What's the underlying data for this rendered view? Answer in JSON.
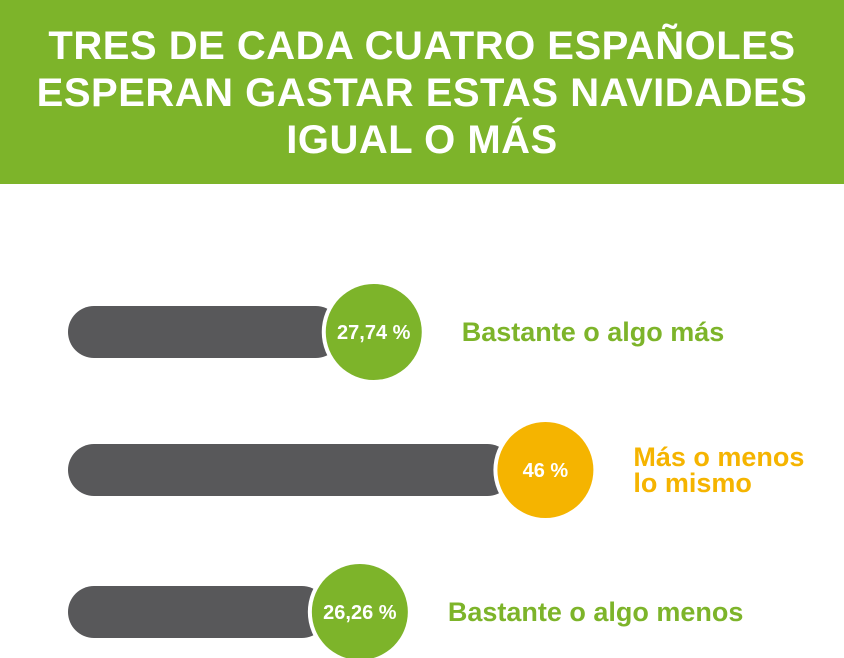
{
  "header": {
    "line1": "TRES DE CADA CUATRO ESPAÑOLES",
    "line2": "ESPERAN GASTAR ESTAS NAVIDADES",
    "line3": "IGUAL O MÁS"
  },
  "colors": {
    "banner": "#7db42a",
    "bar": "#58585a",
    "green": "#7db42a",
    "orange": "#f5b400",
    "white": "#ffffff"
  },
  "chart_data": {
    "type": "bar",
    "orientation": "horizontal",
    "title": "TRES DE CADA CUATRO ESPAÑOLES ESPERAN GASTAR ESTAS NAVIDADES IGUAL O MÁS",
    "unit": "%",
    "categories": [
      "Bastante o algo más",
      "Más o menos lo mismo",
      "Bastante o algo menos"
    ],
    "values": [
      27.74,
      46,
      26.26
    ],
    "value_labels": [
      "27,74 %",
      "46 %",
      "26,26 %"
    ],
    "category_lines": [
      [
        "Bastante o algo más"
      ],
      [
        "Más o menos",
        "lo mismo"
      ],
      [
        "Bastante o algo menos"
      ]
    ],
    "accents": [
      "green",
      "orange",
      "green"
    ]
  }
}
